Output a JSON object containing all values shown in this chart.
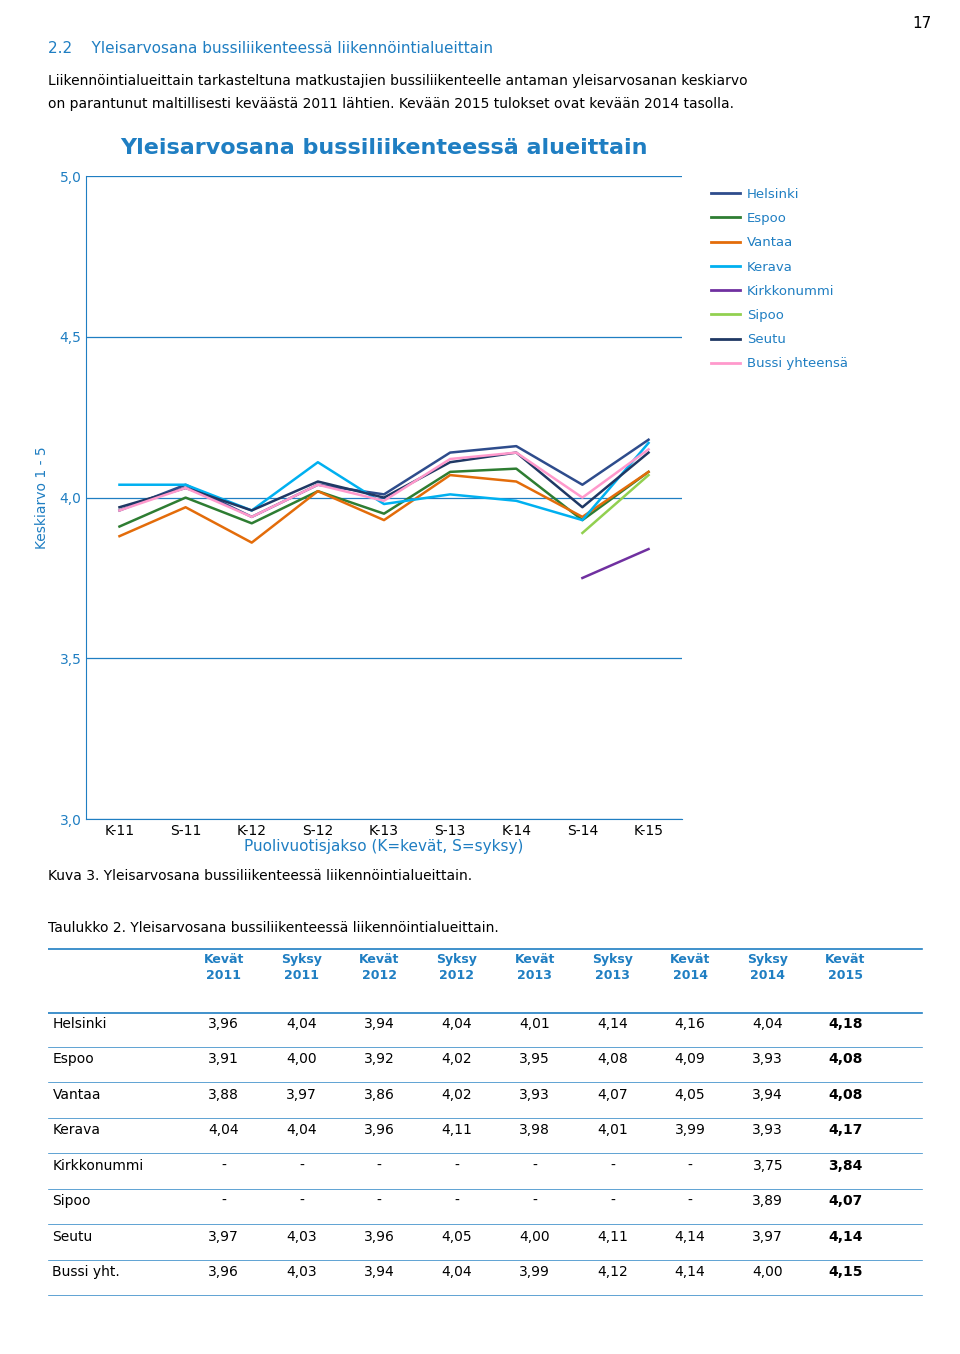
{
  "page_number": "17",
  "section_title": "2.2    Yleisarvosana bussiliikenteessä liikennöintialueittain",
  "section_title_color": "#1F7EC2",
  "body_text_line1": "Liikennöintialueittain tarkasteltuna matkustajien bussiliikenteelle antaman yleisarvosanan keskiarvo",
  "body_text_line2": "on parantunut maltillisesti keväästä 2011 lähtien. Kevään 2015 tulokset ovat kevään 2014 tasolla.",
  "chart_title": "Yleisarvosana bussiliikenteessä alueittain",
  "chart_title_color": "#1F7EC2",
  "ylabel": "Keskiarvo 1 - 5",
  "xlabel": "Puolivuotisjakso (K=kevät, S=syksy)",
  "xlabel_color": "#1F7EC2",
  "ylim": [
    3.0,
    5.0
  ],
  "yticks": [
    3.0,
    3.5,
    4.0,
    4.5,
    5.0
  ],
  "xtick_labels": [
    "K-11",
    "S-11",
    "K-12",
    "S-12",
    "K-13",
    "S-13",
    "K-14",
    "S-14",
    "K-15"
  ],
  "series": {
    "Helsinki": {
      "color": "#2E4C8C",
      "values": [
        3.96,
        4.04,
        3.94,
        4.04,
        4.01,
        4.14,
        4.16,
        4.04,
        4.18
      ],
      "indices": [
        0,
        1,
        2,
        3,
        4,
        5,
        6,
        7,
        8
      ]
    },
    "Espoo": {
      "color": "#2E7D32",
      "values": [
        3.91,
        4.0,
        3.92,
        4.02,
        3.95,
        4.08,
        4.09,
        3.93,
        4.08
      ],
      "indices": [
        0,
        1,
        2,
        3,
        4,
        5,
        6,
        7,
        8
      ]
    },
    "Vantaa": {
      "color": "#E36C0A",
      "values": [
        3.88,
        3.97,
        3.86,
        4.02,
        3.93,
        4.07,
        4.05,
        3.94,
        4.08
      ],
      "indices": [
        0,
        1,
        2,
        3,
        4,
        5,
        6,
        7,
        8
      ]
    },
    "Kerava": {
      "color": "#00B0F0",
      "values": [
        4.04,
        4.04,
        3.96,
        4.11,
        3.98,
        4.01,
        3.99,
        3.93,
        4.17
      ],
      "indices": [
        0,
        1,
        2,
        3,
        4,
        5,
        6,
        7,
        8
      ]
    },
    "Kirkkonummi": {
      "color": "#7030A0",
      "values": [
        3.75,
        3.84
      ],
      "indices": [
        7,
        8
      ]
    },
    "Sipoo": {
      "color": "#92D050",
      "values": [
        3.89,
        4.07
      ],
      "indices": [
        7,
        8
      ]
    },
    "Seutu": {
      "color": "#1F3864",
      "values": [
        3.97,
        4.03,
        3.96,
        4.05,
        4.0,
        4.11,
        4.14,
        3.97,
        4.14
      ],
      "indices": [
        0,
        1,
        2,
        3,
        4,
        5,
        6,
        7,
        8
      ]
    },
    "Bussi yhteensä": {
      "color": "#FF99CC",
      "values": [
        3.96,
        4.03,
        3.94,
        4.04,
        3.99,
        4.12,
        4.14,
        4.0,
        4.15
      ],
      "indices": [
        0,
        1,
        2,
        3,
        4,
        5,
        6,
        7,
        8
      ]
    }
  },
  "caption": "Kuva 3. Yleisarvosana bussiliikenteessä liikennöintialueittain.",
  "table_title": "Taulukko 2. Yleisarvosana bussiliikenteessä liikennöintialueittain.",
  "table_headers": [
    "",
    "Kevät\n2011",
    "Syksy\n2011",
    "Kevät\n2012",
    "Syksy\n2012",
    "Kevät\n2013",
    "Syksy\n2013",
    "Kevät\n2014",
    "Syksy\n2014",
    "Kevät\n2015"
  ],
  "table_rows": [
    [
      "Helsinki",
      "3,96",
      "4,04",
      "3,94",
      "4,04",
      "4,01",
      "4,14",
      "4,16",
      "4,04",
      "4,18"
    ],
    [
      "Espoo",
      "3,91",
      "4,00",
      "3,92",
      "4,02",
      "3,95",
      "4,08",
      "4,09",
      "3,93",
      "4,08"
    ],
    [
      "Vantaa",
      "3,88",
      "3,97",
      "3,86",
      "4,02",
      "3,93",
      "4,07",
      "4,05",
      "3,94",
      "4,08"
    ],
    [
      "Kerava",
      "4,04",
      "4,04",
      "3,96",
      "4,11",
      "3,98",
      "4,01",
      "3,99",
      "3,93",
      "4,17"
    ],
    [
      "Kirkkonummi",
      "-",
      "-",
      "-",
      "-",
      "-",
      "-",
      "-",
      "3,75",
      "3,84"
    ],
    [
      "Sipoo",
      "-",
      "-",
      "-",
      "-",
      "-",
      "-",
      "-",
      "3,89",
      "4,07"
    ],
    [
      "Seutu",
      "3,97",
      "4,03",
      "3,96",
      "4,05",
      "4,00",
      "4,11",
      "4,14",
      "3,97",
      "4,14"
    ],
    [
      "Bussi yht.",
      "3,96",
      "4,03",
      "3,94",
      "4,04",
      "3,99",
      "4,12",
      "4,14",
      "4,00",
      "4,15"
    ]
  ],
  "header_color": "#1F7EC2",
  "grid_color": "#1F7EC2",
  "axis_color": "#1F7EC2",
  "background_color": "#FFFFFF"
}
